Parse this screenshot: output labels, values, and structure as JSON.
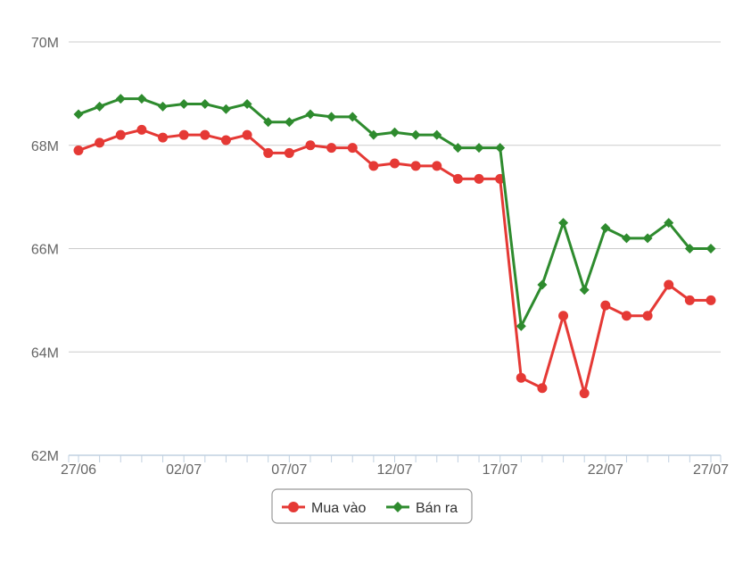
{
  "chart_data": {
    "type": "line",
    "title": "",
    "xlabel": "",
    "ylabel": "",
    "ylim": [
      62,
      70
    ],
    "y_ticks": [
      {
        "value": 62,
        "label": "62M"
      },
      {
        "value": 64,
        "label": "64M"
      },
      {
        "value": 66,
        "label": "66M"
      },
      {
        "value": 68,
        "label": "68M"
      },
      {
        "value": 70,
        "label": "70M"
      }
    ],
    "x_labeled_ticks": [
      {
        "index": 0,
        "label": "27/06"
      },
      {
        "index": 5,
        "label": "02/07"
      },
      {
        "index": 10,
        "label": "07/07"
      },
      {
        "index": 15,
        "label": "12/07"
      },
      {
        "index": 20,
        "label": "17/07"
      },
      {
        "index": 25,
        "label": "22/07"
      },
      {
        "index": 30,
        "label": "27/07"
      }
    ],
    "x": [
      "27/06",
      "28/06",
      "29/06",
      "30/06",
      "01/07",
      "02/07",
      "03/07",
      "04/07",
      "05/07",
      "06/07",
      "07/07",
      "08/07",
      "09/07",
      "10/07",
      "11/07",
      "12/07",
      "13/07",
      "14/07",
      "15/07",
      "16/07",
      "17/07",
      "18/07",
      "19/07",
      "20/07",
      "21/07",
      "22/07",
      "23/07",
      "24/07",
      "25/07",
      "26/07",
      "27/07"
    ],
    "grid": true,
    "legend_position": "bottom-center",
    "series": [
      {
        "name": "Mua vào",
        "color": "#e53935",
        "marker": "circle",
        "values": [
          67.9,
          68.05,
          68.2,
          68.3,
          68.15,
          68.2,
          68.2,
          68.1,
          68.2,
          67.85,
          67.85,
          68.0,
          67.95,
          67.95,
          67.6,
          67.65,
          67.6,
          67.6,
          67.35,
          67.35,
          67.35,
          63.5,
          63.3,
          64.7,
          63.2,
          64.9,
          64.7,
          64.7,
          65.3,
          65.0,
          65.0
        ]
      },
      {
        "name": "Bán ra",
        "color": "#2e8b2e",
        "marker": "diamond",
        "values": [
          68.6,
          68.75,
          68.9,
          68.9,
          68.75,
          68.8,
          68.8,
          68.7,
          68.8,
          68.45,
          68.45,
          68.6,
          68.55,
          68.55,
          68.2,
          68.25,
          68.2,
          68.2,
          67.95,
          67.95,
          67.95,
          64.5,
          65.3,
          66.5,
          65.2,
          66.4,
          66.2,
          66.2,
          66.5,
          66.0,
          66.0
        ]
      }
    ]
  },
  "colors": {
    "grid": "#cccccc",
    "axis": "#c0d0e0",
    "tick_text": "#666666",
    "legend_border": "#999999"
  }
}
